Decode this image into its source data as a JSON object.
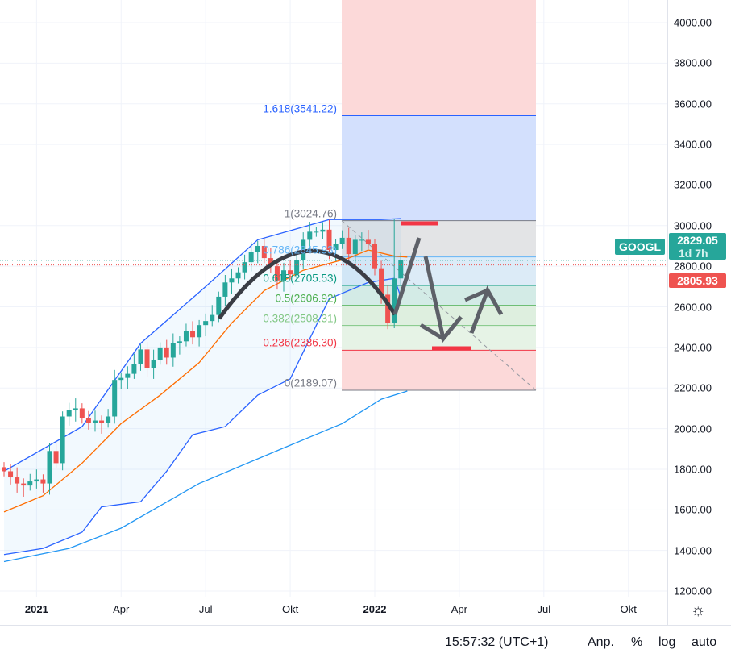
{
  "symbol": "GOOGL",
  "current_price": "2829.05",
  "countdown": "1d 7h",
  "prev_close": "2805.93",
  "colors": {
    "up": "#26a69a",
    "down": "#ef5350",
    "bb": "#2962ff",
    "basis": "#ff6d00",
    "ma": "#2196f3"
  },
  "bottom_bar": {
    "time": "15:57:32 (UTC+1)",
    "adj": "Anp.",
    "percent": "%",
    "log": "log",
    "auto": "auto"
  },
  "chart_data": {
    "type": "candlestick",
    "interval": "weekly",
    "y_range": [
      1200,
      4000
    ],
    "y_ticks": [
      "4000.00",
      "3800.00",
      "3600.00",
      "3400.00",
      "3200.00",
      "3000.00",
      "2800.00",
      "2600.00",
      "2400.00",
      "2200.00",
      "2000.00",
      "1800.00",
      "1600.00",
      "1400.00",
      "1200.00"
    ],
    "x_ticks": [
      {
        "label": "2021",
        "week": 5,
        "bold": true
      },
      {
        "label": "Apr",
        "week": 18
      },
      {
        "label": "Jul",
        "week": 31
      },
      {
        "label": "Okt",
        "week": 44
      },
      {
        "label": "2022",
        "week": 57,
        "bold": true
      },
      {
        "label": "Apr",
        "week": 70
      },
      {
        "label": "Jul",
        "week": 83
      },
      {
        "label": "Okt",
        "week": 96
      }
    ],
    "closes": [
      1790,
      1760,
      1730,
      1720,
      1740,
      1750,
      1730,
      1890,
      1830,
      2060,
      2090,
      2100,
      2050,
      2030,
      2040,
      2030,
      2060,
      2240,
      2250,
      2270,
      2320,
      2390,
      2300,
      2340,
      2400,
      2350,
      2420,
      2430,
      2480,
      2450,
      2510,
      2530,
      2560,
      2650,
      2720,
      2740,
      2770,
      2820,
      2870,
      2900,
      2840,
      2800,
      2730,
      2780,
      2760,
      2830,
      2930,
      2970,
      2970,
      2980,
      2880,
      2910,
      2940,
      2860,
      2930,
      2930,
      2910,
      2790,
      2660,
      2520,
      2740,
      2829.05
    ],
    "bollinger_upper": [
      [
        0,
        1790
      ],
      [
        12,
        2010
      ],
      [
        21,
        2420
      ],
      [
        31,
        2700
      ],
      [
        39,
        2930
      ],
      [
        50,
        3030
      ],
      [
        58,
        3030
      ],
      [
        61,
        3035
      ]
    ],
    "bollinger_lower": [
      [
        0,
        1380
      ],
      [
        6,
        1410
      ],
      [
        12,
        1490
      ],
      [
        15,
        1615
      ],
      [
        21,
        1640
      ],
      [
        25,
        1790
      ],
      [
        29,
        1970
      ],
      [
        34,
        2010
      ],
      [
        39,
        2165
      ],
      [
        44,
        2245
      ],
      [
        50,
        2640
      ],
      [
        56,
        2720
      ],
      [
        60,
        2740
      ],
      [
        61,
        2650
      ]
    ],
    "bollinger_basis": [
      [
        0,
        1590
      ],
      [
        6,
        1670
      ],
      [
        12,
        1830
      ],
      [
        18,
        2025
      ],
      [
        24,
        2165
      ],
      [
        30,
        2325
      ],
      [
        35,
        2520
      ],
      [
        40,
        2680
      ],
      [
        46,
        2780
      ],
      [
        53,
        2840
      ],
      [
        56,
        2880
      ],
      [
        60,
        2850
      ],
      [
        62,
        2845
      ]
    ],
    "moving_average": [
      [
        0,
        1345
      ],
      [
        10,
        1410
      ],
      [
        18,
        1510
      ],
      [
        30,
        1730
      ],
      [
        43,
        1905
      ],
      [
        52,
        2025
      ],
      [
        58,
        2145
      ],
      [
        62,
        2185
      ]
    ],
    "fibonacci": [
      {
        "ratio": "1.618",
        "price": 3541.22,
        "label": "1.618(3541.22)",
        "color": "#2962ff"
      },
      {
        "ratio": "1",
        "price": 3024.76,
        "label": "1(3024.76)",
        "color": "#787b86"
      },
      {
        "ratio": "0.786",
        "price": 2845.93,
        "label": "0.786(2845.93)",
        "color": "#64b5f6"
      },
      {
        "ratio": "0.618",
        "price": 2705.53,
        "label": "0.618(2705.53)",
        "color": "#089981"
      },
      {
        "ratio": "0.5",
        "price": 2606.92,
        "label": "0.5(2606.92)",
        "color": "#4caf50"
      },
      {
        "ratio": "0.382",
        "price": 2508.31,
        "label": "0.382(2508.31)",
        "color": "#81c784"
      },
      {
        "ratio": "0.236",
        "price": 2386.3,
        "label": "0.236(2386.30)",
        "color": "#f23645"
      },
      {
        "ratio": "0",
        "price": 2189.07,
        "label": "0(2189.07)",
        "color": "#787b86"
      }
    ]
  }
}
